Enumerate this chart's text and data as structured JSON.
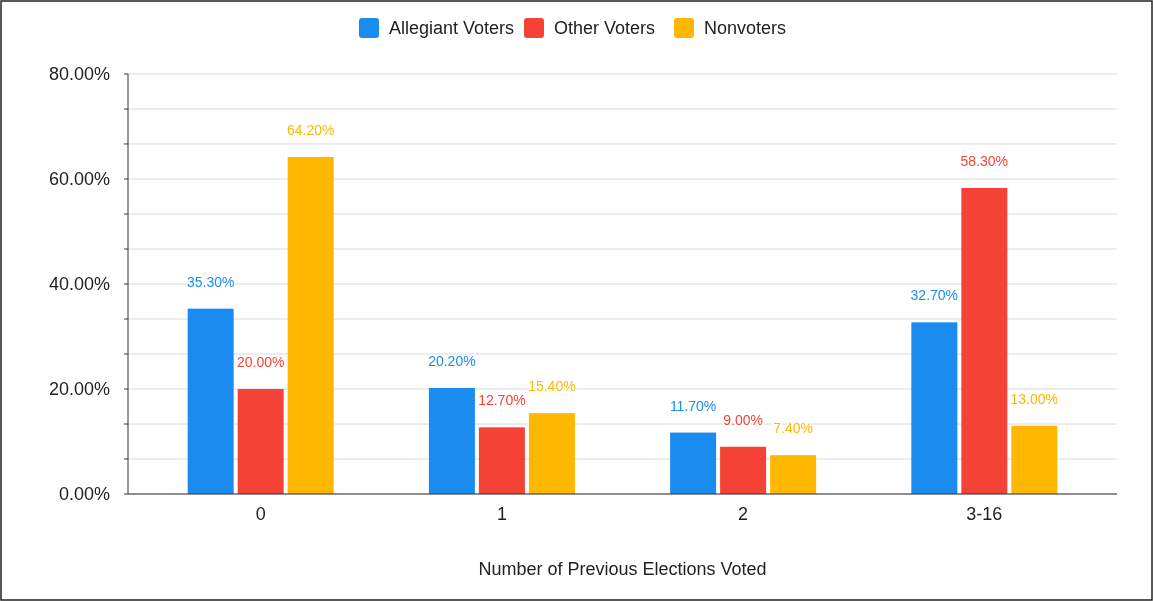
{
  "chart_data": {
    "type": "bar",
    "xlabel": "Number of Previous Elections Voted",
    "categories": [
      "0",
      "1",
      "2",
      "3-16"
    ],
    "series": [
      {
        "name": "Allegiant Voters",
        "color": "#1a8cf0",
        "values": [
          35.3,
          20.2,
          11.7,
          32.7
        ],
        "value_labels": [
          "35.30%",
          "20.20%",
          "11.70%",
          "32.70%"
        ]
      },
      {
        "name": "Other Voters",
        "color": "#f44336",
        "values": [
          20.0,
          12.7,
          9.0,
          58.3
        ],
        "value_labels": [
          "20.00%",
          "12.70%",
          "9.00%",
          "58.30%"
        ]
      },
      {
        "name": "Nonvoters",
        "color": "#ffb700",
        "values": [
          64.2,
          15.4,
          7.4,
          13.0
        ],
        "value_labels": [
          "64.20%",
          "15.40%",
          "7.40%",
          "13.00%"
        ]
      }
    ],
    "ylim": [
      0,
      80
    ],
    "yticks": [
      {
        "value": 0,
        "label": "0.00%"
      },
      {
        "value": 6.67,
        "label": null
      },
      {
        "value": 13.33,
        "label": null
      },
      {
        "value": 20,
        "label": "20.00%"
      },
      {
        "value": 26.67,
        "label": null
      },
      {
        "value": 33.33,
        "label": null
      },
      {
        "value": 40,
        "label": "40.00%"
      },
      {
        "value": 46.67,
        "label": null
      },
      {
        "value": 53.33,
        "label": null
      },
      {
        "value": 60,
        "label": "60.00%"
      },
      {
        "value": 66.67,
        "label": null
      },
      {
        "value": 73.33,
        "label": null
      },
      {
        "value": 80,
        "label": "80.00%"
      }
    ],
    "grid": true,
    "legend": "top"
  }
}
